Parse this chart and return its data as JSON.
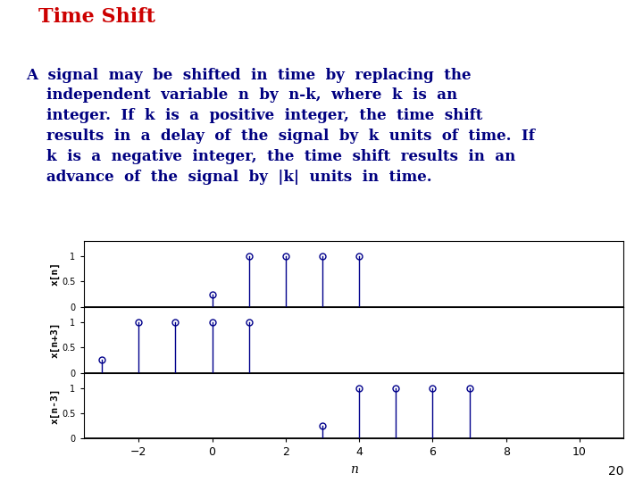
{
  "title": "Time Shift",
  "title_color": "#cc0000",
  "body_color": "#000080",
  "bg_color": "#ffffff",
  "n_range": [
    -3,
    11
  ],
  "x_ticks": [
    -2,
    0,
    2,
    4,
    6,
    8,
    10
  ],
  "signal_n": [
    0,
    1,
    2,
    3,
    4
  ],
  "signal_values": [
    0.25,
    1.0,
    1.0,
    1.0,
    1.0
  ],
  "shift_advance": -3,
  "shift_delay": 3,
  "stem_color": "#00008B",
  "marker_color": "#00008B",
  "ylim": [
    0,
    1.3
  ],
  "yticks_vals": [
    0,
    0.5,
    1
  ],
  "yticks_labels": [
    "0",
    "0.5",
    "1"
  ],
  "subplot_ylabels": [
    "x[n]",
    "x[n+3]",
    "x[n-3]"
  ],
  "xlabel": "n",
  "page_number": "20",
  "title_fontsize": 16,
  "body_fontsize": 12,
  "body_lines": [
    "A  signal  may  be  shifted  in  time  by  replacing  the",
    "    independent  variable  n  by  n-k,  where  k  is  an",
    "    integer.  If  k  is  a  positive  integer,  the  time  shift",
    "    results  in  a  delay  of  the  signal  by  k  units  of  time.  If",
    "    k  is  a  negative  integer,  the  time  shift  results  in  an",
    "    advance  of  the  signal  by  |k|  units  in  time."
  ]
}
